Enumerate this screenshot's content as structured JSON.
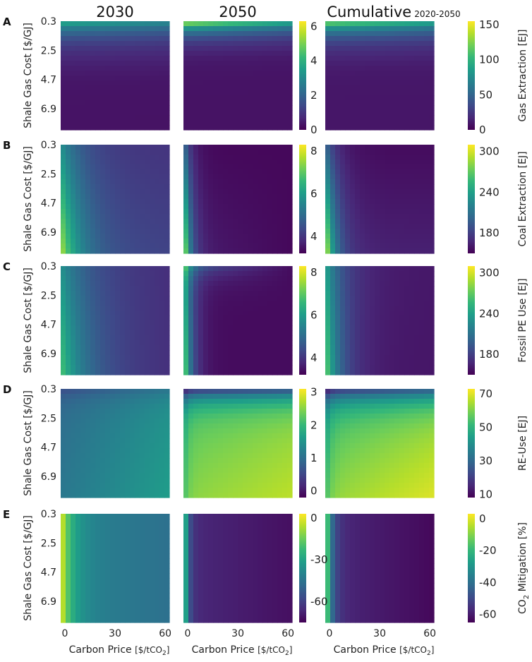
{
  "figure": {
    "columns": [
      {
        "title": "2030",
        "subtitle": ""
      },
      {
        "title": "2050",
        "subtitle": ""
      },
      {
        "title": "Cumulative",
        "subtitle": "2020-2050"
      }
    ],
    "y_axis_label": "Shale Gas Cost [$/GJ]",
    "y_ticks": [
      "0.3",
      "2.5",
      "4.7",
      "6.9"
    ],
    "x_axis_label": "Carbon Price",
    "x_axis_unit": "[$/tCO",
    "x_axis_unit_sub": "2",
    "x_axis_unit_end": "]",
    "x_ticks": [
      "0",
      "30",
      "60"
    ],
    "colormap": [
      "#440154",
      "#482878",
      "#3e4989",
      "#31688e",
      "#26828e",
      "#1f9e89",
      "#35b779",
      "#6ece58",
      "#b5de2b",
      "#fde725"
    ]
  },
  "chart_data": [
    {
      "type": "heatmap",
      "row": "A",
      "variable": "Gas Extraction",
      "x": {
        "label": "Carbon Price [$/tCO2]",
        "range": [
          0,
          65
        ],
        "ticks": [
          0,
          30,
          60
        ]
      },
      "y": {
        "label": "Shale Gas Cost [$/GJ]",
        "range": [
          0.3,
          8.5
        ],
        "ticks": [
          0.3,
          2.5,
          4.7,
          6.9
        ]
      },
      "colorbars": [
        {
          "column": "2030/2050",
          "label": "",
          "ticks": [
            "0",
            "2",
            "4",
            "6"
          ],
          "range": [
            0,
            6.3
          ]
        },
        {
          "column": "Cumulative",
          "label_main": "Gas Extraction [EJ]",
          "label_sub": "",
          "label_end": "",
          "ticks": [
            "0",
            "50",
            "100",
            "150"
          ],
          "range": [
            0,
            155
          ]
        }
      ]
    },
    {
      "type": "heatmap",
      "row": "B",
      "variable": "Coal Extraction",
      "x": {
        "label": "Carbon Price [$/tCO2]",
        "range": [
          0,
          65
        ],
        "ticks": [
          0,
          30,
          60
        ]
      },
      "y": {
        "label": "Shale Gas Cost [$/GJ]",
        "range": [
          0.3,
          8.5
        ],
        "ticks": [
          0.3,
          2.5,
          4.7,
          6.9
        ]
      },
      "colorbars": [
        {
          "column": "2030/2050",
          "label": "",
          "ticks": [
            "4",
            "6",
            "8"
          ],
          "range": [
            3.2,
            8.3
          ]
        },
        {
          "column": "Cumulative",
          "label_main": "Coal Extraction [EJ]",
          "label_sub": "",
          "label_end": "",
          "ticks": [
            "180",
            "240",
            "300"
          ],
          "range": [
            150,
            310
          ]
        }
      ]
    },
    {
      "type": "heatmap",
      "row": "C",
      "variable": "Fossil PE Use",
      "x": {
        "label": "Carbon Price [$/tCO2]",
        "range": [
          0,
          65
        ],
        "ticks": [
          0,
          30,
          60
        ]
      },
      "y": {
        "label": "Shale Gas Cost [$/GJ]",
        "range": [
          0.3,
          8.5
        ],
        "ticks": [
          0.3,
          2.5,
          4.7,
          6.9
        ]
      },
      "colorbars": [
        {
          "column": "2030/2050",
          "label": "",
          "ticks": [
            "4",
            "6",
            "8"
          ],
          "range": [
            3.2,
            8.3
          ]
        },
        {
          "column": "Cumulative",
          "label_main": "Fossil PE Use [EJ]",
          "label_sub": "",
          "label_end": "",
          "ticks": [
            "180",
            "240",
            "300"
          ],
          "range": [
            150,
            310
          ]
        }
      ]
    },
    {
      "type": "heatmap",
      "row": "D",
      "variable": "RE-Use",
      "x": {
        "label": "Carbon Price [$/tCO2]",
        "range": [
          0,
          65
        ],
        "ticks": [
          0,
          30,
          60
        ]
      },
      "y": {
        "label": "Shale Gas Cost [$/GJ]",
        "range": [
          0.3,
          8.5
        ],
        "ticks": [
          0.3,
          2.5,
          4.7,
          6.9
        ]
      },
      "colorbars": [
        {
          "column": "2030/2050",
          "label": "",
          "ticks": [
            "0",
            "1",
            "2",
            "3"
          ],
          "range": [
            -0.2,
            3.1
          ]
        },
        {
          "column": "Cumulative",
          "label_main": "RE-Use [EJ]",
          "label_sub": "",
          "label_end": "",
          "ticks": [
            "10",
            "30",
            "50",
            "70"
          ],
          "range": [
            8,
            73
          ]
        }
      ]
    },
    {
      "type": "heatmap",
      "row": "E",
      "variable": "CO2 Mitigation",
      "x": {
        "label": "Carbon Price [$/tCO2]",
        "range": [
          0,
          65
        ],
        "ticks": [
          0,
          30,
          60
        ]
      },
      "y": {
        "label": "Shale Gas Cost [$/GJ]",
        "range": [
          0.3,
          8.5
        ],
        "ticks": [
          0.3,
          2.5,
          4.7,
          6.9
        ]
      },
      "colorbars": [
        {
          "column": "2030/2050",
          "label": "",
          "ticks": [
            "0",
            "-30",
            "-60"
          ],
          "range": [
            -75,
            3
          ]
        },
        {
          "column": "Cumulative",
          "label_main": "CO",
          "label_sub": "2",
          "label_end": " Mitigation [%]",
          "ticks": [
            "0",
            "-20",
            "-40",
            "-60"
          ],
          "range": [
            -65,
            3
          ]
        }
      ]
    }
  ]
}
